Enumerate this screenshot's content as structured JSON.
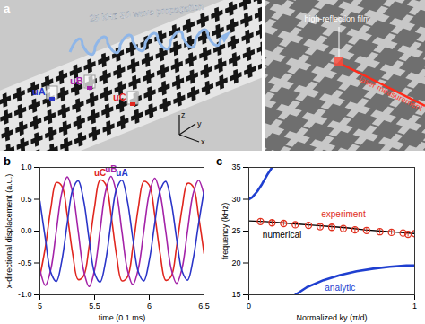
{
  "figure_a": {
    "label": "a",
    "wave_label": "25 kHz S0 wave propagation",
    "points": [
      {
        "name": "uA",
        "color": "#2b35c8"
      },
      {
        "name": "uB",
        "color": "#a423a8"
      },
      {
        "name": "uC",
        "color": "#e0261e"
      }
    ],
    "axes": [
      "x",
      "y",
      "z"
    ],
    "film_label": "high-reflection film",
    "laser_label": "laser measurement"
  },
  "chart_data": [
    {
      "type": "line",
      "label": "b",
      "xlabel": "time (0.1 ms)",
      "ylabel": "x-directional displacement (a.u.)",
      "x": [
        5.0,
        5.05,
        5.1,
        5.15,
        5.2,
        5.25,
        5.3,
        5.35,
        5.4,
        5.45,
        5.5,
        5.55,
        5.6,
        5.65,
        5.7,
        5.75,
        5.8,
        5.85,
        5.9,
        5.95,
        6.0,
        6.05,
        6.1,
        6.15,
        6.2,
        6.25,
        6.3,
        6.35,
        6.4,
        6.45,
        6.5
      ],
      "series": [
        {
          "name": "uC",
          "color": "#e0261e",
          "values": [
            -0.71,
            -0.25,
            0.36,
            0.76,
            0.71,
            0.25,
            -0.36,
            -0.76,
            -0.7,
            -0.24,
            0.38,
            0.8,
            0.74,
            0.26,
            -0.37,
            -0.78,
            -0.72,
            -0.25,
            0.37,
            0.78,
            0.72,
            0.25,
            -0.36,
            -0.77,
            -0.71,
            -0.24,
            0.36,
            0.75,
            0.7,
            0.24,
            -0.35
          ]
        },
        {
          "name": "uB",
          "color": "#a423a8",
          "values": [
            -0.6,
            -0.85,
            -0.6,
            0.0,
            0.6,
            0.85,
            0.6,
            0.0,
            -0.62,
            -0.87,
            -0.61,
            0.01,
            0.62,
            0.86,
            0.6,
            -0.01,
            -0.61,
            -0.84,
            -0.59,
            0.0,
            0.59,
            0.83,
            0.58,
            0.0,
            -0.59,
            -0.82,
            -0.58,
            0.01,
            0.58,
            0.8,
            0.57
          ]
        },
        {
          "name": "uA",
          "color": "#2b35c8",
          "values": [
            0.47,
            -0.12,
            -0.65,
            -0.79,
            -0.47,
            0.12,
            0.65,
            0.79,
            0.48,
            -0.13,
            -0.66,
            -0.8,
            -0.48,
            0.13,
            0.66,
            0.8,
            0.47,
            -0.12,
            -0.64,
            -0.78,
            -0.46,
            0.12,
            0.64,
            0.78,
            0.46,
            -0.12,
            -0.63,
            -0.77,
            -0.45,
            0.11,
            0.63
          ]
        }
      ],
      "xlim": [
        5,
        6.5
      ],
      "xticks": [
        5,
        5.5,
        6,
        6.5
      ],
      "ylim": [
        -1,
        1
      ],
      "yticks": [
        {
          "value": -1,
          "label": "-1.0"
        },
        {
          "value": -0.5,
          "label": "-0.5"
        },
        {
          "value": 0,
          "label": "0.0"
        },
        {
          "value": 0.5,
          "label": "0.5"
        },
        {
          "value": 1,
          "label": "1.0"
        }
      ],
      "grid": false
    },
    {
      "type": "line",
      "label": "c",
      "xlabel": "Normalized ky (π/d)",
      "ylabel": "frequency (kHz)",
      "series": [
        {
          "name": "numerical",
          "type": "line",
          "color": "#000000",
          "line_style": "solid",
          "x": [
            0,
            0.1,
            0.2,
            0.3,
            0.4,
            0.5,
            0.6,
            0.7,
            0.8,
            0.9,
            1.0
          ],
          "values": [
            26.6,
            26.5,
            26.3,
            26.1,
            25.9,
            25.7,
            25.5,
            25.2,
            25.0,
            24.8,
            24.6
          ]
        },
        {
          "name": "analytic",
          "type": "line",
          "color": "#1f3fd0",
          "line_style": "solid",
          "x": [
            0,
            0.02,
            0.05,
            0.08,
            0.11,
            0.14,
            0.2,
            0.28,
            0.35,
            0.45,
            0.55,
            0.65,
            0.75,
            0.85,
            0.95,
            1.0
          ],
          "values": [
            30.0,
            30.3,
            31.2,
            32.4,
            33.8,
            35.0,
            null,
            15.0,
            16.2,
            17.3,
            18.1,
            18.7,
            19.1,
            19.4,
            19.6,
            19.6
          ]
        },
        {
          "name": "experiment",
          "type": "scatter",
          "marker": "circle",
          "color": "#e0301e",
          "x": [
            0.07,
            0.14,
            0.21,
            0.28,
            0.36,
            0.43,
            0.5,
            0.57,
            0.64,
            0.71,
            0.79,
            0.86,
            0.93,
            0.96,
            1.0
          ],
          "values": [
            26.5,
            26.3,
            26.2,
            26.0,
            25.9,
            25.7,
            25.6,
            25.4,
            25.2,
            25.1,
            24.9,
            24.8,
            24.7,
            24.5,
            24.6
          ],
          "errors": [
            0.4,
            0.4,
            0.4,
            0.4,
            0.4,
            0.4,
            0.4,
            0.4,
            0.4,
            0.4,
            0.4,
            0.4,
            0.4,
            0.4,
            0.4
          ]
        }
      ],
      "xlim": [
        0,
        1
      ],
      "xticks": [
        0,
        1
      ],
      "ylim": [
        15,
        35
      ],
      "yticks": [
        15,
        20,
        25,
        30,
        35
      ],
      "grid": false
    }
  ]
}
